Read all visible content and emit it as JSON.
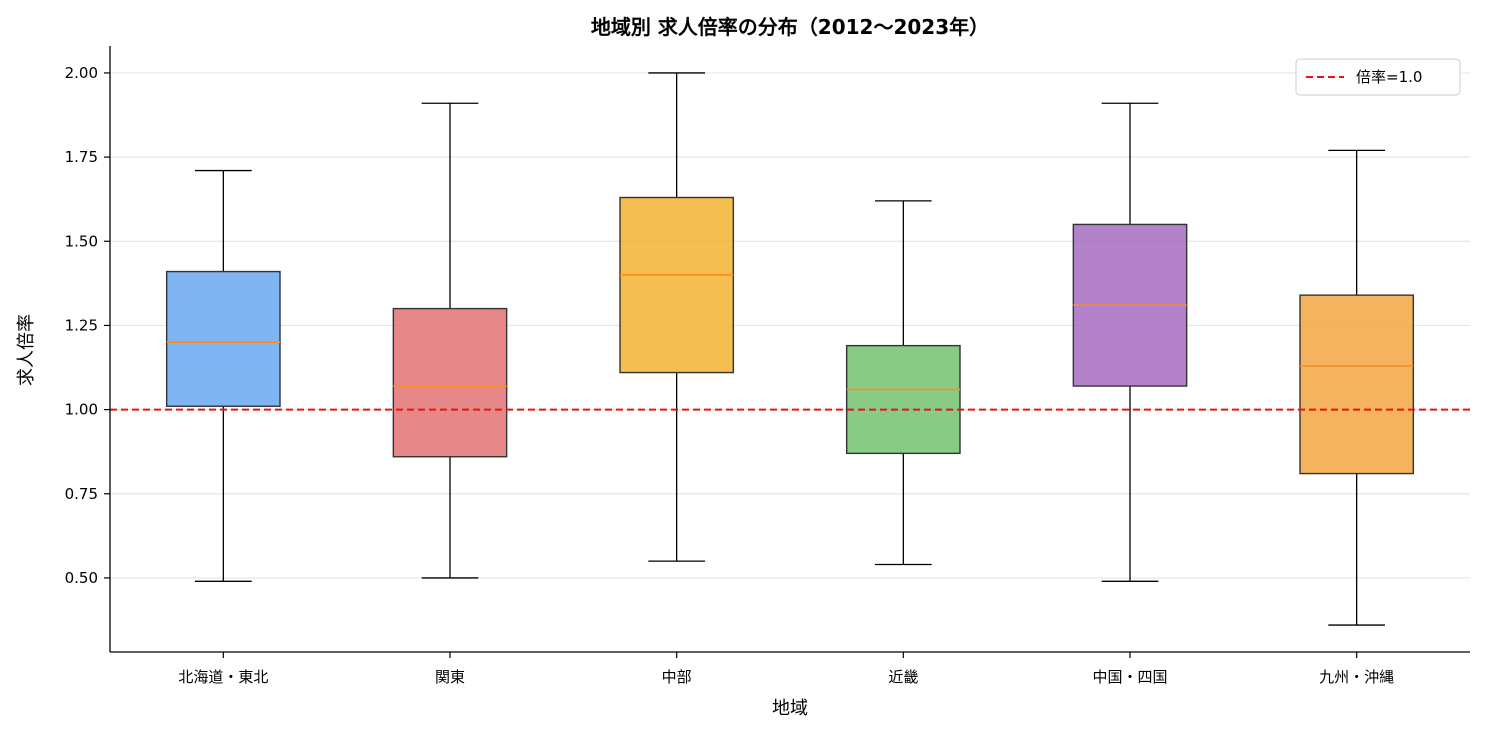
{
  "chart_data": {
    "type": "box",
    "title": "地域別 求人倍率の分布（2012〜2023年）",
    "xlabel": "地域",
    "ylabel": "求人倍率",
    "ylim": [
      0.28,
      2.08
    ],
    "yticks": [
      "0.50",
      "0.75",
      "1.00",
      "1.25",
      "1.50",
      "1.75",
      "2.00"
    ],
    "grid": "horizontal",
    "legend_position": "top-right",
    "reference_line": {
      "y": 1.0,
      "label": "倍率=1.0",
      "color": "#ee1111",
      "style": "dashed"
    },
    "median_color": "#ff8c1a",
    "categories": [
      "北海道・東北",
      "関東",
      "中部",
      "近畿",
      "中国・四国",
      "九州・沖縄"
    ],
    "boxes": [
      {
        "whisker_low": 0.49,
        "q1": 1.01,
        "median": 1.2,
        "q3": 1.41,
        "whisker_high": 1.71,
        "color": "#64a5f0"
      },
      {
        "whisker_low": 0.5,
        "q1": 0.86,
        "median": 1.07,
        "q3": 1.3,
        "whisker_high": 1.91,
        "color": "#e06e6e"
      },
      {
        "whisker_low": 0.55,
        "q1": 1.11,
        "median": 1.4,
        "q3": 1.63,
        "whisker_high": 2.0,
        "color": "#f2b02a"
      },
      {
        "whisker_low": 0.54,
        "q1": 0.87,
        "median": 1.06,
        "q3": 1.19,
        "whisker_high": 1.62,
        "color": "#6ebf6b"
      },
      {
        "whisker_low": 0.49,
        "q1": 1.07,
        "median": 1.31,
        "q3": 1.55,
        "whisker_high": 1.91,
        "color": "#a467bf"
      },
      {
        "whisker_low": 0.36,
        "q1": 0.81,
        "median": 1.13,
        "q3": 1.34,
        "whisker_high": 1.77,
        "color": "#f2a23a"
      }
    ]
  }
}
